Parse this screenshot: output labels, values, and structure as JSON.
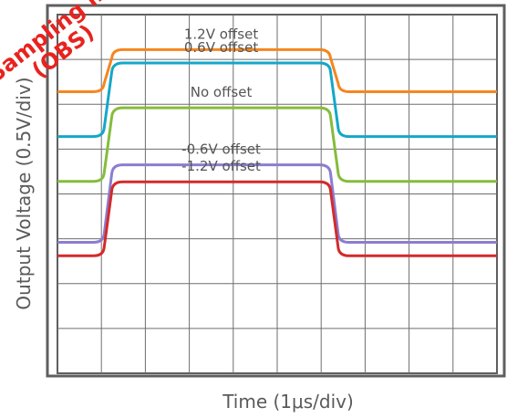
{
  "chart_data": {
    "type": "line",
    "xlabel": "Time (1μs/div)",
    "ylabel": "Output Voltage (0.5V/div)",
    "xlim": [
      0,
      10
    ],
    "ylim": [
      0,
      8
    ],
    "grid": true,
    "x_divisions": 10,
    "y_divisions": 8,
    "series": [
      {
        "name": "1.2V offset",
        "color": "#f5861f",
        "low": 6.28,
        "high": 7.22
      },
      {
        "name": "0.6V offset",
        "color": "#14a7c9",
        "low": 5.28,
        "high": 6.92
      },
      {
        "name": "No offset",
        "color": "#86bc3b",
        "low": 4.28,
        "high": 5.92
      },
      {
        "name": "-0.6V offset",
        "color": "#8b7dd1",
        "low": 2.92,
        "high": 4.65
      },
      {
        "name": "-1.2V offset",
        "color": "#d42a2a",
        "low": 2.62,
        "high": 4.27
      }
    ],
    "edges": {
      "rise_start": 1.0,
      "rise_end": 1.3,
      "fall_start": 6.15,
      "fall_end": 6.45
    }
  },
  "watermark": {
    "lines": [
      "Sampling m",
      "(OBS)"
    ],
    "color": "#e8231f"
  }
}
